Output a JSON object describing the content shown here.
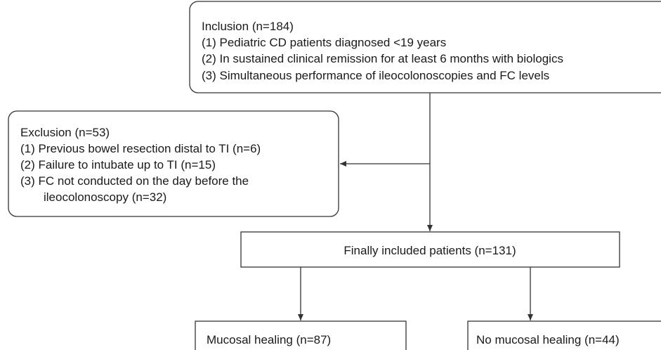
{
  "inclusion": {
    "title": "Inclusion (n=184)",
    "items": [
      "(1) Pediatric CD patients diagnosed <19 years",
      "(2) In sustained clinical remission for at least 6 months with biologics",
      "(3) Simultaneous performance of ileocolonoscopies and FC levels"
    ]
  },
  "exclusion": {
    "title": "Exclusion (n=53)",
    "items": [
      "(1) Previous bowel resection distal to TI (n=6)",
      "(2) Failure to intubate up to TI (n=15)",
      "(3) FC not conducted on the day before the",
      "ileocolonoscopy (n=32)"
    ]
  },
  "final": {
    "label": "Finally included patients (n=131)"
  },
  "outcomes": [
    {
      "label": "Mucosal healing (n=87)"
    },
    {
      "label": "No mucosal healing (n=44)"
    }
  ]
}
